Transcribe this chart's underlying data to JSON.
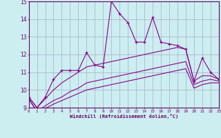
{
  "xlabel": "Windchill (Refroidissement éolien,°C)",
  "xlim": [
    0,
    23
  ],
  "ylim": [
    9,
    15
  ],
  "yticks": [
    9,
    10,
    11,
    12,
    13,
    14,
    15
  ],
  "xticks": [
    0,
    1,
    2,
    3,
    4,
    5,
    6,
    7,
    8,
    9,
    10,
    11,
    12,
    13,
    14,
    15,
    16,
    17,
    18,
    19,
    20,
    21,
    22,
    23
  ],
  "background_color": "#cceef0",
  "grid_color": "#aaaacc",
  "line_color": "#880088",
  "lines": [
    {
      "x": [
        0,
        1,
        2,
        3,
        4,
        5,
        6,
        7,
        8,
        9,
        10,
        11,
        12,
        13,
        14,
        15,
        16,
        17,
        18,
        19,
        20,
        21,
        22,
        23
      ],
      "y": [
        9.6,
        9.0,
        9.6,
        10.6,
        11.1,
        11.1,
        11.1,
        12.1,
        11.4,
        11.3,
        15.0,
        14.3,
        13.8,
        12.7,
        12.7,
        14.1,
        12.7,
        12.6,
        12.5,
        12.3,
        10.5,
        11.8,
        11.0,
        10.6
      ],
      "marker": "+"
    },
    {
      "x": [
        0,
        1,
        2,
        3,
        4,
        5,
        6,
        7,
        8,
        9,
        10,
        11,
        12,
        13,
        14,
        15,
        16,
        17,
        18,
        19,
        20,
        21,
        22,
        23
      ],
      "y": [
        9.6,
        9.0,
        9.5,
        10.0,
        10.4,
        10.7,
        11.0,
        11.3,
        11.4,
        11.5,
        11.6,
        11.7,
        11.8,
        11.9,
        12.0,
        12.1,
        12.2,
        12.3,
        12.4,
        12.3,
        10.5,
        10.8,
        10.8,
        10.6
      ],
      "marker": null
    },
    {
      "x": [
        0,
        1,
        2,
        3,
        4,
        5,
        6,
        7,
        8,
        9,
        10,
        11,
        12,
        13,
        14,
        15,
        16,
        17,
        18,
        19,
        20,
        21,
        22,
        23
      ],
      "y": [
        9.5,
        8.8,
        9.1,
        9.4,
        9.6,
        9.9,
        10.1,
        10.4,
        10.5,
        10.6,
        10.7,
        10.8,
        10.9,
        11.0,
        11.1,
        11.2,
        11.3,
        11.4,
        11.5,
        11.6,
        10.3,
        10.5,
        10.6,
        10.5
      ],
      "marker": null
    },
    {
      "x": [
        0,
        1,
        2,
        3,
        4,
        5,
        6,
        7,
        8,
        9,
        10,
        11,
        12,
        13,
        14,
        15,
        16,
        17,
        18,
        19,
        20,
        21,
        22,
        23
      ],
      "y": [
        9.5,
        8.75,
        8.95,
        9.2,
        9.4,
        9.6,
        9.8,
        10.0,
        10.1,
        10.2,
        10.3,
        10.4,
        10.5,
        10.6,
        10.7,
        10.8,
        10.9,
        11.0,
        11.1,
        11.2,
        10.1,
        10.3,
        10.4,
        10.4
      ],
      "marker": null
    }
  ]
}
